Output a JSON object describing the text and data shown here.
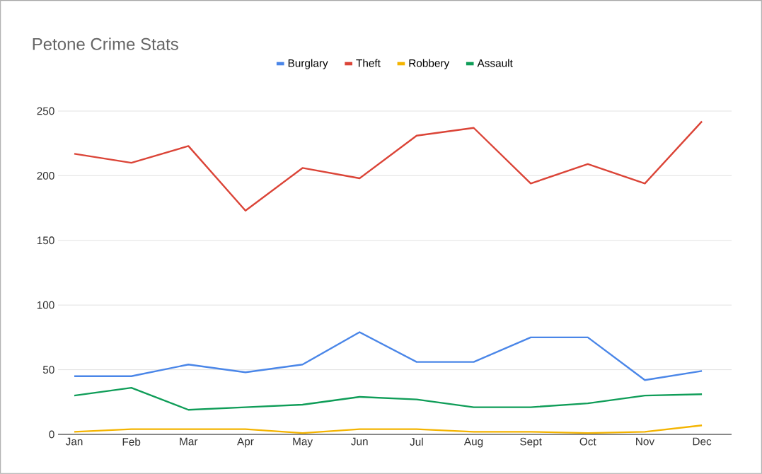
{
  "chart_data": {
    "type": "line",
    "title": "Petone Crime Stats",
    "categories": [
      "Jan",
      "Feb",
      "Mar",
      "Apr",
      "May",
      "Jun",
      "Jul",
      "Aug",
      "Sept",
      "Oct",
      "Nov",
      "Dec"
    ],
    "series": [
      {
        "name": "Burglary",
        "color": "#4a86e8",
        "values": [
          45,
          45,
          54,
          48,
          54,
          79,
          56,
          56,
          75,
          75,
          42,
          49
        ]
      },
      {
        "name": "Theft",
        "color": "#db4437",
        "values": [
          217,
          210,
          223,
          173,
          206,
          198,
          231,
          237,
          194,
          209,
          194,
          242
        ]
      },
      {
        "name": "Robbery",
        "color": "#f4b400",
        "values": [
          2,
          4,
          4,
          4,
          1,
          4,
          4,
          2,
          2,
          1,
          2,
          7
        ]
      },
      {
        "name": "Assault",
        "color": "#0f9d58",
        "values": [
          30,
          36,
          19,
          21,
          23,
          29,
          27,
          21,
          21,
          24,
          30,
          31
        ]
      }
    ],
    "ylim": [
      0,
      250
    ],
    "yticks": [
      0,
      50,
      100,
      150,
      200,
      250
    ],
    "grid": "y",
    "legend": "top",
    "marker": "none",
    "line_style": "solid"
  }
}
